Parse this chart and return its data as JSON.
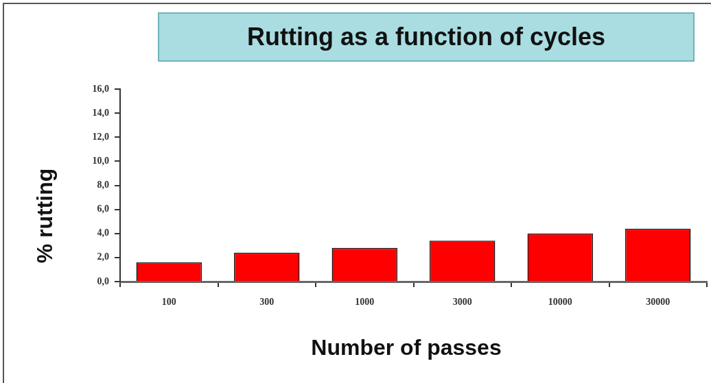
{
  "chart_data": {
    "type": "bar",
    "title": "Rutting as a function of cycles",
    "xlabel": "Number of passes",
    "ylabel": "% rutting",
    "categories": [
      "100",
      "300",
      "1000",
      "3000",
      "10000",
      "30000"
    ],
    "values": [
      1.6,
      2.4,
      2.8,
      3.4,
      4.0,
      4.4
    ],
    "color": "#ff0000",
    "ylim": [
      0,
      16
    ],
    "yticks": [
      {
        "value": 0,
        "label": "0,0"
      },
      {
        "value": 2,
        "label": "2,0"
      },
      {
        "value": 4,
        "label": "4,0"
      },
      {
        "value": 6,
        "label": "6,0"
      },
      {
        "value": 8,
        "label": "8,0"
      },
      {
        "value": 10,
        "label": "10,0"
      },
      {
        "value": 12,
        "label": "12,0"
      },
      {
        "value": 14,
        "label": "14,0"
      },
      {
        "value": 16,
        "label": "16,0"
      }
    ],
    "grid": false,
    "legend": false
  }
}
